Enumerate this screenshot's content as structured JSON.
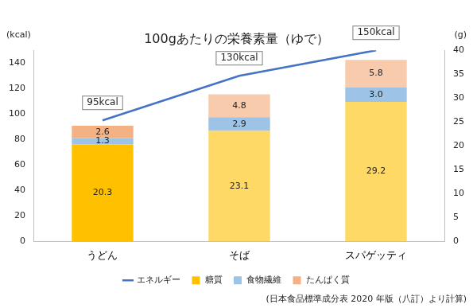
{
  "chart_data": {
    "type": "bar",
    "title": "100gあたりの栄養素量（ゆで）",
    "subtitle": "(日本食品標準成分表 2020 年版（八訂）より計算)",
    "categories": [
      "うどん",
      "そば",
      "スパゲッティ"
    ],
    "stacked": true,
    "data_labels": true,
    "legend": "bottom",
    "grid": false,
    "y_label": "(kcal)",
    "y2_label": "(g)",
    "ylim": [
      0,
      150
    ],
    "yticks": [
      0,
      20,
      40,
      60,
      80,
      100,
      120,
      140
    ],
    "y2lim": [
      0,
      40
    ],
    "y2ticks": [
      0,
      5,
      10,
      15,
      20,
      25,
      30,
      35,
      40
    ],
    "series": [
      {
        "name": "糖質",
        "type": "bar",
        "axis": "y2",
        "colors": [
          "#ffc000",
          "#ffd966",
          "#ffd966"
        ],
        "values": [
          20.3,
          23.1,
          29.2
        ]
      },
      {
        "name": "食物繊維",
        "type": "bar",
        "axis": "y2",
        "color": "#9dc3e6",
        "values": [
          1.3,
          2.9,
          3.0
        ],
        "value_labels": [
          "1.3",
          "2.9",
          "3.0"
        ]
      },
      {
        "name": "たんぱく質",
        "type": "bar",
        "axis": "y2",
        "colors": [
          "#f4b183",
          "#f8cbad",
          "#f8cbad"
        ],
        "values": [
          2.6,
          4.8,
          5.8
        ]
      },
      {
        "name": "エネルギー",
        "type": "line",
        "axis": "y",
        "color": "#4472c4",
        "values": [
          95,
          130,
          150
        ],
        "value_labels": [
          "95kcal",
          "130kcal",
          "150kcal"
        ]
      }
    ]
  }
}
